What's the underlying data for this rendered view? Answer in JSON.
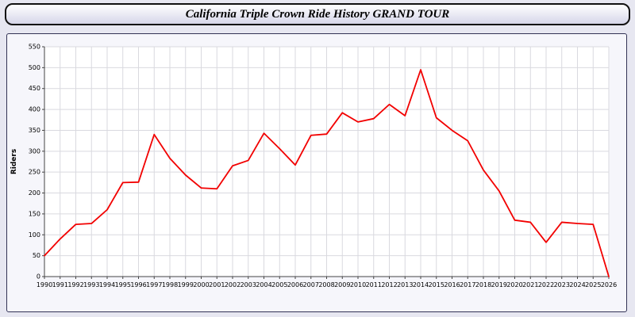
{
  "window": {
    "title": "California Triple Crown Ride History GRAND TOUR"
  },
  "chart_data": {
    "type": "line",
    "title": "California Triple Crown Ride History GRAND TOUR",
    "xlabel": "",
    "ylabel": "Riders",
    "ylim": [
      0,
      550
    ],
    "ytick_step": 50,
    "grid": true,
    "legend": "none",
    "line_color": "#f20000",
    "grid_color": "#d9d9df",
    "axis_color": "#444444",
    "plot_bg": "#ffffff",
    "years": [
      1990,
      1991,
      1992,
      1993,
      1994,
      1995,
      1996,
      1997,
      1998,
      1999,
      2000,
      2001,
      2002,
      2003,
      2004,
      2005,
      2006,
      2007,
      2008,
      2009,
      2010,
      2011,
      2012,
      2013,
      2014,
      2015,
      2016,
      2017,
      2018,
      2019,
      2020,
      2021,
      2022,
      2023,
      2024,
      2025,
      2026
    ],
    "values": [
      50,
      90,
      125,
      127,
      160,
      225,
      226,
      340,
      283,
      243,
      212,
      210,
      265,
      278,
      343,
      306,
      267,
      338,
      341,
      392,
      370,
      378,
      412,
      385,
      495,
      380,
      350,
      325,
      255,
      205,
      135,
      130,
      82,
      130,
      127,
      125,
      0
    ]
  }
}
